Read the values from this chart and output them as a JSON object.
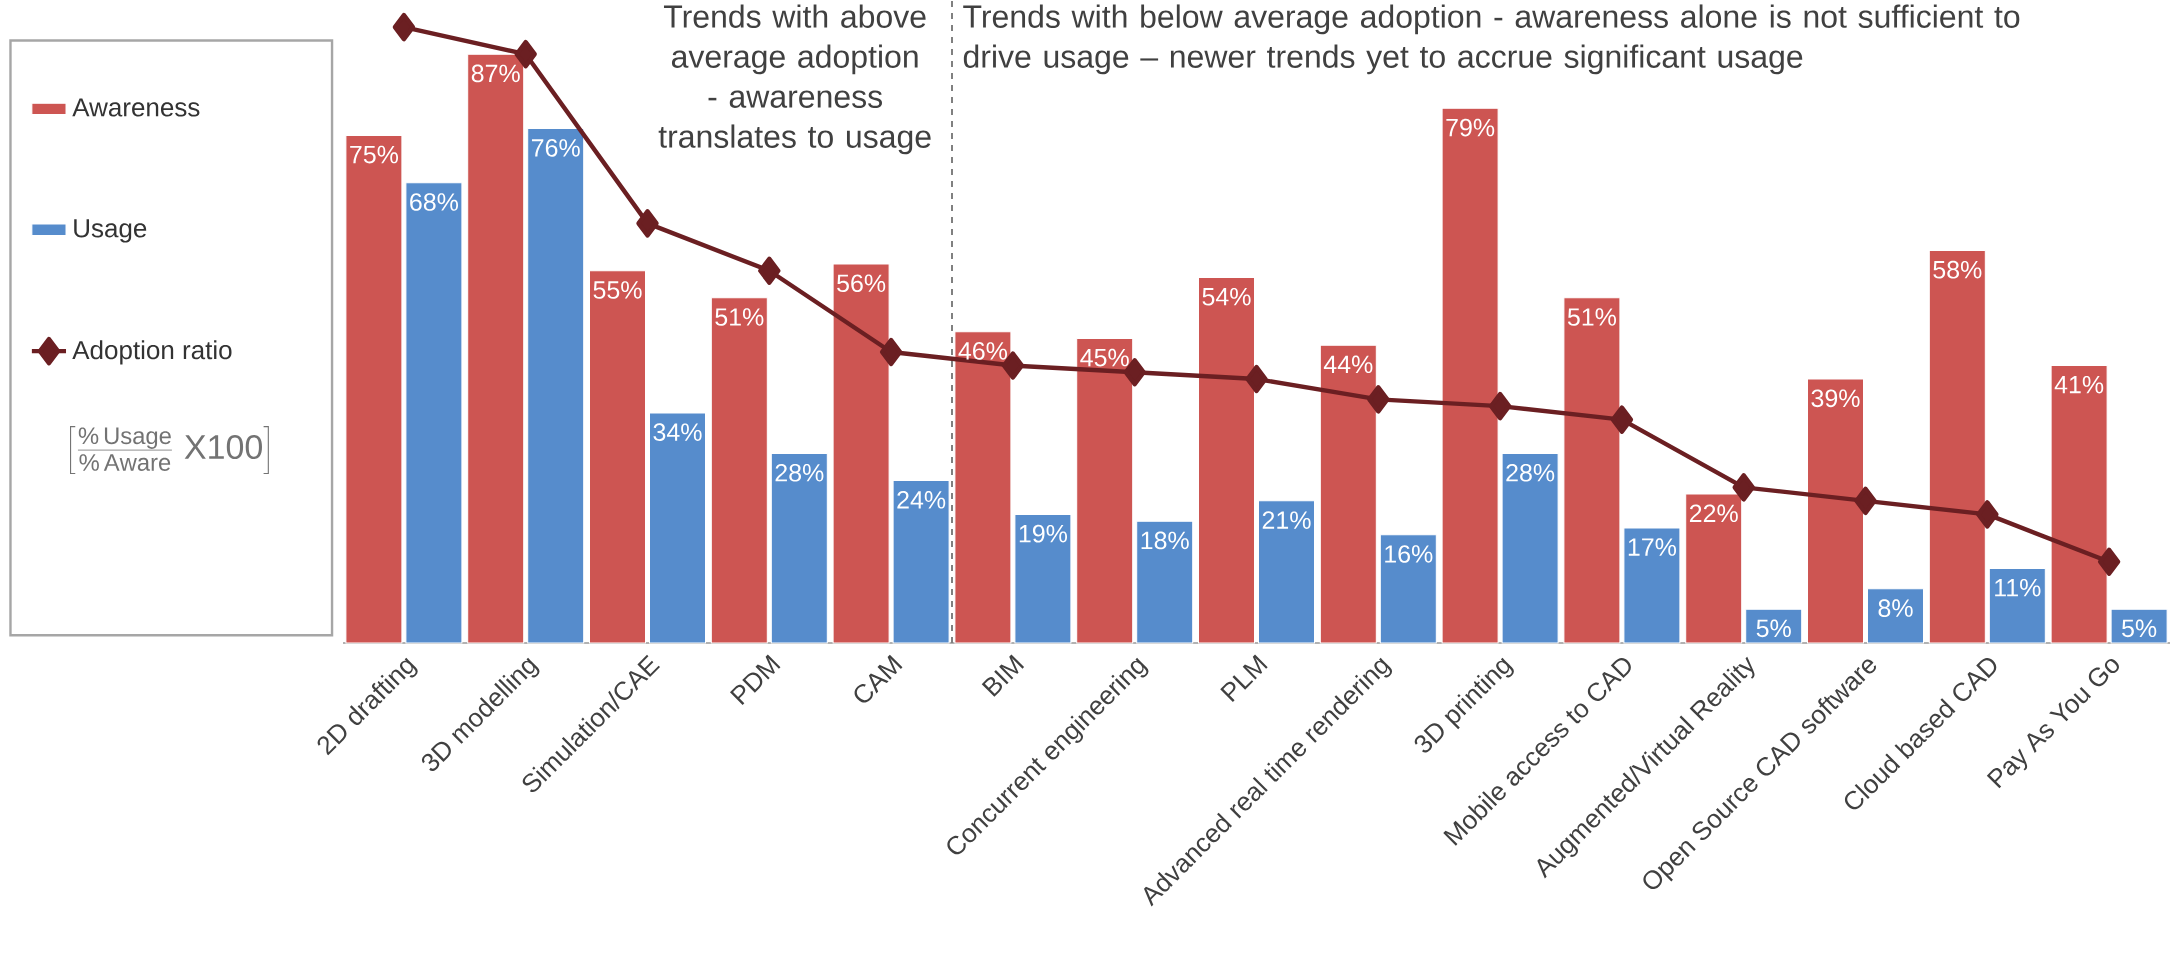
{
  "chart_data": {
    "type": "bar",
    "categories": [
      "2D drafting",
      "3D modelling",
      "Simulation/CAE",
      "PDM",
      "CAM",
      "BIM",
      "Concurrent engineering",
      "PLM",
      "Advanced real time rendering",
      "3D printing",
      "Mobile access to CAD",
      "Augmented/Virtual Reality",
      "Open Source CAD software",
      "Cloud based CAD",
      "Pay As You Go"
    ],
    "series": [
      {
        "name": "Awareness",
        "color": "#cd5552",
        "values": [
          75,
          87,
          55,
          51,
          56,
          46,
          45,
          54,
          44,
          79,
          51,
          22,
          39,
          58,
          41
        ],
        "value_labels": [
          "75%",
          "87%",
          "55%",
          "51%",
          "56%",
          "46%",
          "45%",
          "54%",
          "44%",
          "79%",
          "51%",
          "22%",
          "39%",
          "58%",
          "41%"
        ]
      },
      {
        "name": "Usage",
        "color": "#568ccc",
        "values": [
          68,
          76,
          34,
          28,
          24,
          19,
          18,
          21,
          16,
          28,
          17,
          5,
          8,
          11,
          5
        ],
        "value_labels": [
          "68%",
          "76%",
          "34%",
          "28%",
          "24%",
          "19%",
          "18%",
          "21%",
          "16%",
          "28%",
          "17%",
          "5%",
          "8%",
          "11%",
          "5%"
        ]
      },
      {
        "name": "Adoption ratio",
        "type": "line",
        "color": "#6b1f22",
        "values": [
          91,
          87,
          62,
          55,
          43,
          41,
          40,
          39,
          36,
          35,
          33,
          23,
          21,
          19,
          12
        ]
      }
    ],
    "ylim": [
      0,
      95
    ],
    "tick_labels": "x",
    "legend": "left",
    "marker": "diamond",
    "annotations": [
      "Trends with above average adoption - awareness translates to usage",
      "Trends with below average adoption - awareness alone is not sufficient to drive usage – newer trends yet to accrue significant usage",
      "\\left[\\frac{\\%\\,\\mathrm{Usage}}{\\%\\,\\mathrm{Aware}}\\;\\mathrm{X100}\\right]"
    ]
  }
}
